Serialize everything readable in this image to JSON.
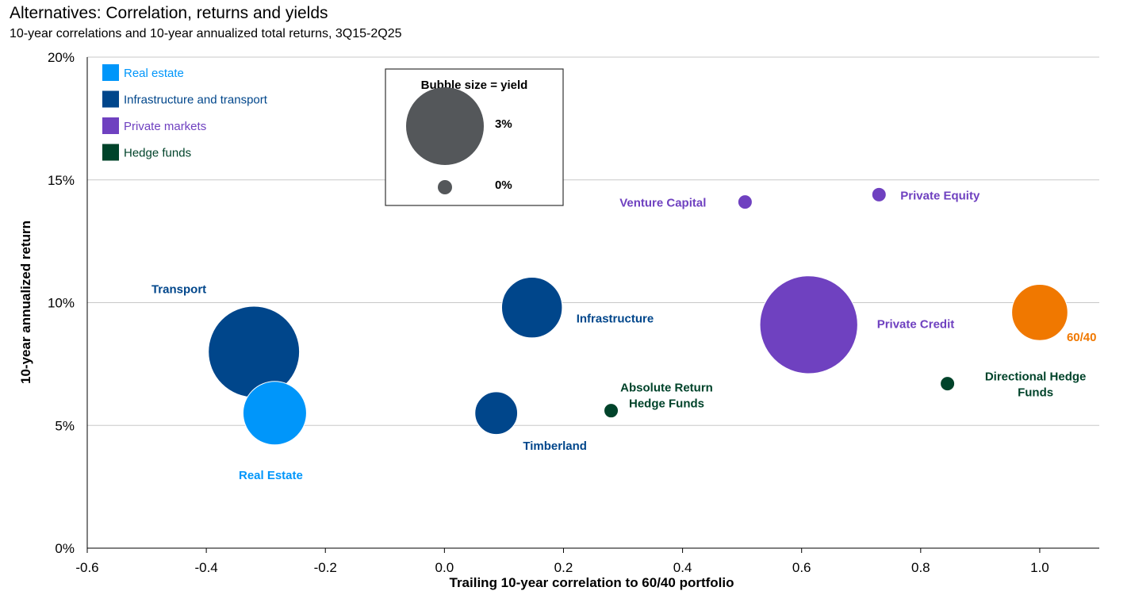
{
  "header": {
    "title": "Alternatives: Correlation, returns and yields",
    "subtitle": "10-year correlations and 10-year annualized total returns, 3Q15-2Q25"
  },
  "chart_data": {
    "type": "scatter",
    "title": "Alternatives: Correlation, returns and yields",
    "subtitle": "10-year correlations and 10-year annualized total returns, 3Q15-2Q25",
    "xlabel": "Trailing 10-year correlation to 60/40 portfolio",
    "ylabel": "10-year annualized return",
    "xlim": [
      -0.6,
      1.1
    ],
    "ylim": [
      0,
      20
    ],
    "x_ticks": [
      "-0.6",
      "-0.4",
      "-0.2",
      "0.0",
      "0.2",
      "0.4",
      "0.6",
      "0.8",
      "1.0"
    ],
    "y_ticks": [
      "0%",
      "5%",
      "10%",
      "15%",
      "20%"
    ],
    "grid": "horizontal",
    "legend_placement": "top-left",
    "categories": [
      {
        "name": "Real estate",
        "color": "#0096FA"
      },
      {
        "name": "Infrastructure and transport",
        "color": "#00468B"
      },
      {
        "name": "Private markets",
        "color": "#6F41C0"
      },
      {
        "name": "Hedge funds",
        "color": "#00432A"
      }
    ],
    "size_legend": {
      "title": "Bubble size = yield",
      "items": [
        {
          "label": "3%",
          "yield": 3
        },
        {
          "label": "0%",
          "yield": 0
        }
      ],
      "color": "#54575A"
    },
    "points": [
      {
        "name": "Transport",
        "x": -0.32,
        "y": 8.0,
        "yield": 4.4,
        "group": "Infrastructure and transport"
      },
      {
        "name": "Real Estate",
        "x": -0.285,
        "y": 5.5,
        "yield": 1.8,
        "group": "Real estate"
      },
      {
        "name": "Infrastructure",
        "x": 0.147,
        "y": 9.8,
        "yield": 1.6,
        "group": "Infrastructure and transport"
      },
      {
        "name": "Timberland",
        "x": 0.087,
        "y": 5.5,
        "yield": 0.6,
        "group": "Infrastructure and transport"
      },
      {
        "name": "Absolute Return Hedge Funds",
        "x": 0.28,
        "y": 5.6,
        "yield": 0,
        "group": "Hedge funds"
      },
      {
        "name": "Venture Capital",
        "x": 0.505,
        "y": 14.1,
        "yield": 0,
        "group": "Private markets"
      },
      {
        "name": "Private Equity",
        "x": 0.73,
        "y": 14.4,
        "yield": 0,
        "group": "Private markets"
      },
      {
        "name": "Private Credit",
        "x": 0.612,
        "y": 9.1,
        "yield": 5.2,
        "group": "Private markets"
      },
      {
        "name": "Directional Hedge Funds",
        "x": 0.845,
        "y": 6.7,
        "yield": 0,
        "group": "Hedge funds"
      },
      {
        "name": "60/40",
        "x": 1.0,
        "y": 9.6,
        "yield": 1.3,
        "color": "#F07800"
      }
    ]
  }
}
